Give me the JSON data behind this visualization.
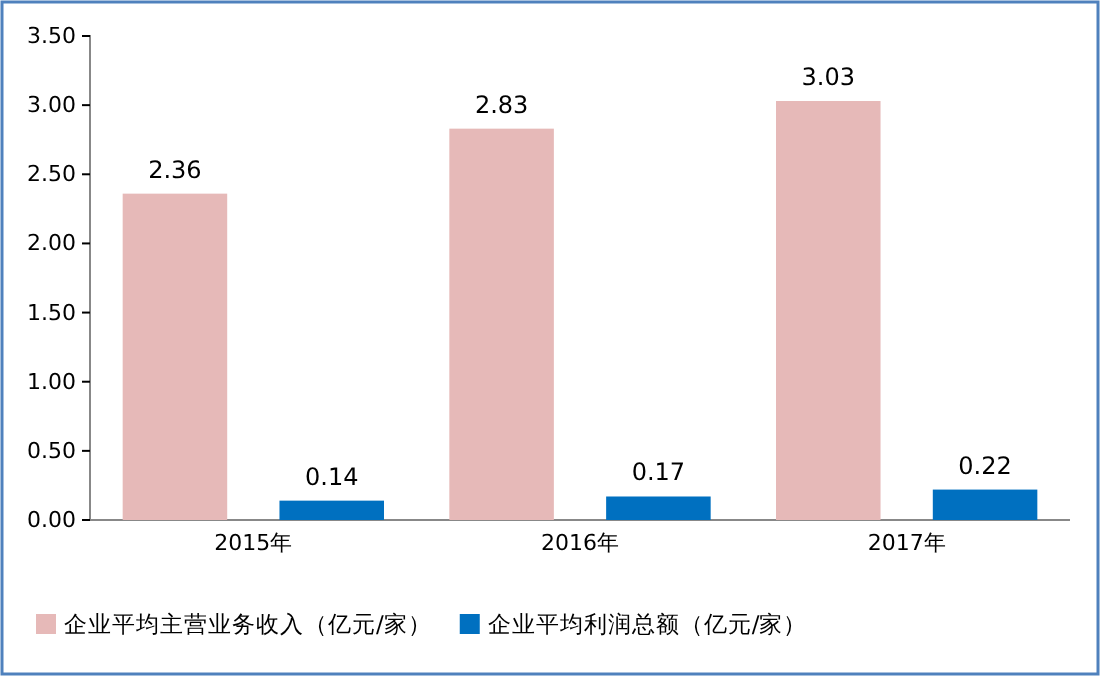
{
  "chart_data": {
    "type": "bar",
    "categories": [
      "2015年",
      "2016年",
      "2017年"
    ],
    "series": [
      {
        "name": "企业平均主营业务收入（亿元/家）",
        "color": "#e6b9b8",
        "values": [
          2.36,
          2.83,
          3.03
        ]
      },
      {
        "name": "企业平均利润总额（亿元/家）",
        "color": "#0070c0",
        "values": [
          0.14,
          0.17,
          0.22
        ]
      }
    ],
    "ylim": [
      0,
      3.5
    ],
    "yticks": [
      {
        "value": 0,
        "label": "0.00"
      },
      {
        "value": 0.5,
        "label": "0.50"
      },
      {
        "value": 1,
        "label": "1.00"
      },
      {
        "value": 1.5,
        "label": "1.50"
      },
      {
        "value": 2,
        "label": "2.00"
      },
      {
        "value": 2.5,
        "label": "2.50"
      },
      {
        "value": 3,
        "label": "3.00"
      },
      {
        "value": 3.5,
        "label": "3.50"
      }
    ],
    "data_labels": true,
    "legend": "bottom"
  }
}
